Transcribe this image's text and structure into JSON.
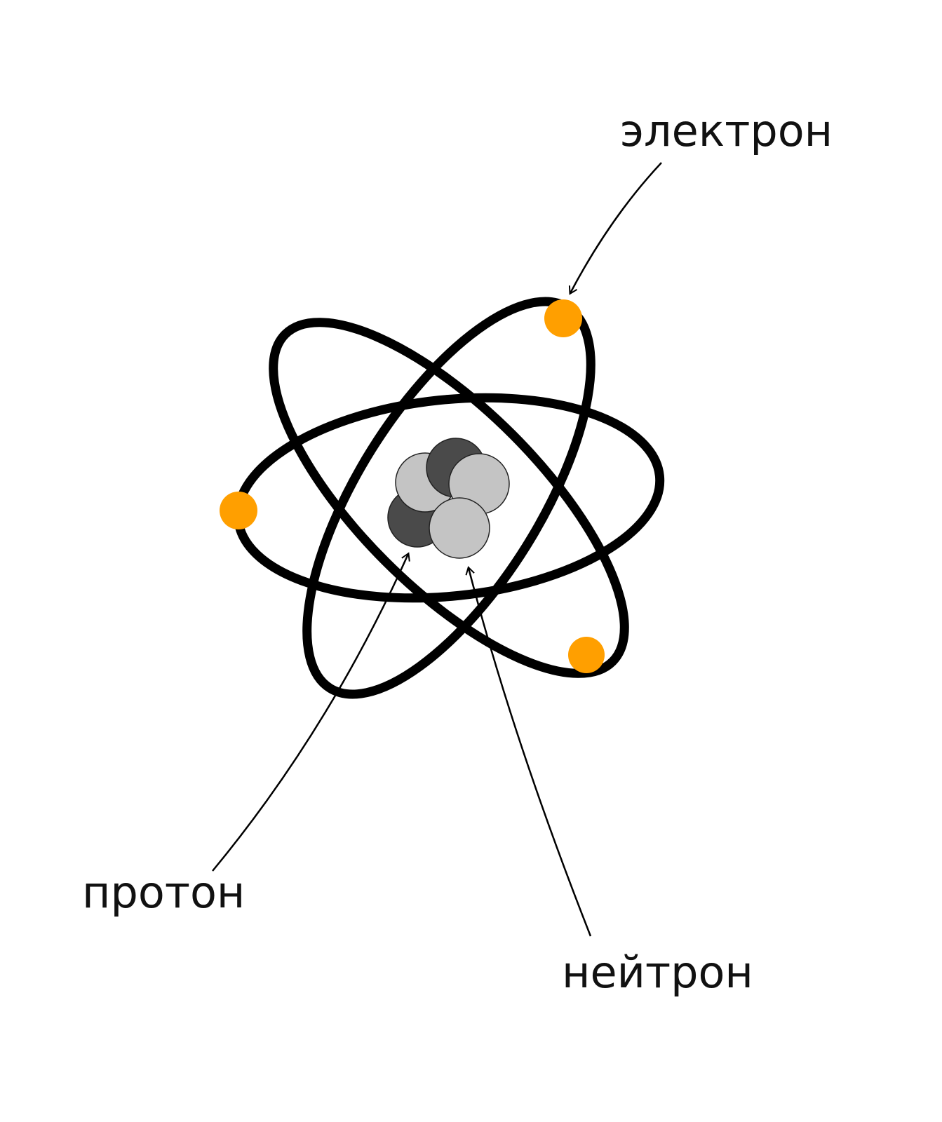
{
  "labels": {
    "electron": "электрон",
    "proton": "протон",
    "neutron": "нейтрон"
  },
  "colors": {
    "orbit": "#000000",
    "electron": "#ff9f00",
    "proton": "#c4c4c4",
    "neutron": "#4a4a4a",
    "text": "#111111",
    "background": "#ffffff"
  },
  "counts": {
    "orbits": 3,
    "electrons": 3,
    "protons": 3,
    "neutrons": 2
  }
}
